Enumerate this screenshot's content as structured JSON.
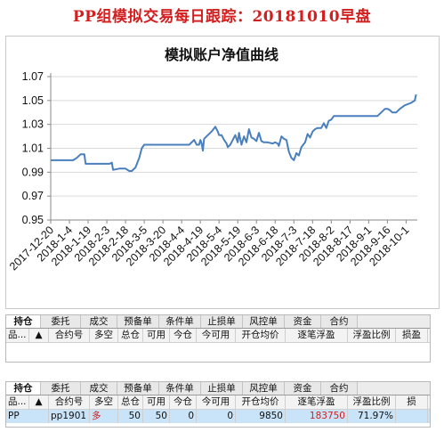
{
  "page_title": "PP组模拟交易每日跟踪：20181010早盘",
  "chart_data": {
    "type": "line",
    "title": "模拟账户净值曲线",
    "xlabel": "",
    "ylabel": "",
    "ylim": [
      0.95,
      1.07
    ],
    "yticks": [
      "0.95",
      "0.97",
      "0.99",
      "1.01",
      "1.03",
      "1.05",
      "1.07"
    ],
    "xticks": [
      "2017-12-20",
      "2018-1-4",
      "2018-1-19",
      "2018-2-3",
      "2018-2-18",
      "2018-3-5",
      "2018-3-20",
      "2018-4-4",
      "2018-4-19",
      "2018-5-4",
      "2018-5-19",
      "2018-6-3",
      "2018-6-18",
      "2018-7-3",
      "2018-7-18",
      "2018-8-2",
      "2018-8-17",
      "2018-9-1",
      "2018-9-16",
      "2018-10-1"
    ],
    "grid": true,
    "line_color": "#4a7fbd",
    "series": [
      {
        "points": [
          [
            "2017-12-20",
            1.0
          ],
          [
            "2017-12-25",
            1.0
          ],
          [
            "2017-12-30",
            1.0
          ],
          [
            "2018-1-4",
            1.0
          ],
          [
            "2018-1-7",
            1.0
          ],
          [
            "2018-1-10",
            1.002
          ],
          [
            "2018-1-13",
            1.005
          ],
          [
            "2018-1-16",
            1.005
          ],
          [
            "2018-1-17",
            0.997
          ],
          [
            "2018-1-19",
            0.997
          ],
          [
            "2018-1-25",
            0.997
          ],
          [
            "2018-2-1",
            0.997
          ],
          [
            "2018-2-3",
            0.997
          ],
          [
            "2018-2-5",
            0.997
          ],
          [
            "2018-2-7",
            0.998
          ],
          [
            "2018-2-8",
            0.992
          ],
          [
            "2018-2-13",
            0.993
          ],
          [
            "2018-2-18",
            0.993
          ],
          [
            "2018-2-21",
            0.991
          ],
          [
            "2018-2-23",
            0.991
          ],
          [
            "2018-2-26",
            0.994
          ],
          [
            "2018-3-1",
            1.002
          ],
          [
            "2018-3-2",
            1.006
          ],
          [
            "2018-3-3",
            1.01
          ],
          [
            "2018-3-5",
            1.013
          ],
          [
            "2018-3-10",
            1.013
          ],
          [
            "2018-3-20",
            1.013
          ],
          [
            "2018-4-4",
            1.013
          ],
          [
            "2018-4-10",
            1.013
          ],
          [
            "2018-4-14",
            1.017
          ],
          [
            "2018-4-16",
            1.013
          ],
          [
            "2018-4-18",
            1.013
          ],
          [
            "2018-4-19",
            1.017
          ],
          [
            "2018-4-20",
            1.014
          ],
          [
            "2018-4-21",
            1.008
          ],
          [
            "2018-4-22",
            1.018
          ],
          [
            "2018-4-25",
            1.021
          ],
          [
            "2018-4-28",
            1.024
          ],
          [
            "2018-5-1",
            1.028
          ],
          [
            "2018-5-3",
            1.024
          ],
          [
            "2018-5-4",
            1.021
          ],
          [
            "2018-5-6",
            1.021
          ],
          [
            "2018-5-8",
            1.017
          ],
          [
            "2018-5-10",
            1.014
          ],
          [
            "2018-5-11",
            1.011
          ],
          [
            "2018-5-13",
            1.013
          ],
          [
            "2018-5-16",
            1.019
          ],
          [
            "2018-5-17",
            1.021
          ],
          [
            "2018-5-19",
            1.015
          ],
          [
            "2018-5-20",
            1.023
          ],
          [
            "2018-5-22",
            1.013
          ],
          [
            "2018-5-24",
            1.02
          ],
          [
            "2018-5-26",
            1.015
          ],
          [
            "2018-5-28",
            1.026
          ],
          [
            "2018-5-30",
            1.019
          ],
          [
            "2018-6-1",
            1.018
          ],
          [
            "2018-6-3",
            1.016
          ],
          [
            "2018-6-5",
            1.023
          ],
          [
            "2018-6-7",
            1.016
          ],
          [
            "2018-6-9",
            1.015
          ],
          [
            "2018-6-12",
            1.015
          ],
          [
            "2018-6-16",
            1.014
          ],
          [
            "2018-6-18",
            1.015
          ],
          [
            "2018-6-20",
            1.014
          ],
          [
            "2018-6-21",
            1.012
          ],
          [
            "2018-6-23",
            1.02
          ],
          [
            "2018-6-25",
            1.018
          ],
          [
            "2018-6-27",
            1.017
          ],
          [
            "2018-6-29",
            1.007
          ],
          [
            "2018-7-1",
            1.002
          ],
          [
            "2018-7-3",
            1.0
          ],
          [
            "2018-7-5",
            1.006
          ],
          [
            "2018-7-7",
            1.004
          ],
          [
            "2018-7-9",
            1.011
          ],
          [
            "2018-7-12",
            1.015
          ],
          [
            "2018-7-14",
            1.022
          ],
          [
            "2018-7-16",
            1.019
          ],
          [
            "2018-7-18",
            1.024
          ],
          [
            "2018-7-20",
            1.026
          ],
          [
            "2018-7-22",
            1.027
          ],
          [
            "2018-7-25",
            1.027
          ],
          [
            "2018-7-27",
            1.031
          ],
          [
            "2018-7-29",
            1.027
          ],
          [
            "2018-7-31",
            1.033
          ],
          [
            "2018-8-2",
            1.034
          ],
          [
            "2018-8-4",
            1.037
          ],
          [
            "2018-8-10",
            1.037
          ],
          [
            "2018-8-17",
            1.037
          ],
          [
            "2018-9-1",
            1.037
          ],
          [
            "2018-9-8",
            1.037
          ],
          [
            "2018-9-11",
            1.04
          ],
          [
            "2018-9-14",
            1.043
          ],
          [
            "2018-9-16",
            1.043
          ],
          [
            "2018-9-18",
            1.042
          ],
          [
            "2018-9-20",
            1.04
          ],
          [
            "2018-9-23",
            1.04
          ],
          [
            "2018-9-26",
            1.043
          ],
          [
            "2018-9-30",
            1.046
          ],
          [
            "2018-10-5",
            1.048
          ],
          [
            "2018-10-8",
            1.05
          ],
          [
            "2018-10-9",
            1.055
          ]
        ]
      }
    ]
  },
  "panel1": {
    "tabs": [
      "持仓",
      "委托",
      "成交",
      "预备单",
      "条件单",
      "止损单",
      "风控单",
      "资金",
      "合约"
    ],
    "headers": [
      "品...",
      "▲",
      "合约号",
      "多空",
      "总仓",
      "可用",
      "今仓",
      "今可用",
      "开仓均价",
      "逐笔浮盈",
      "浮盈比例",
      "损盈"
    ]
  },
  "panel2": {
    "tabs": [
      "持仓",
      "委托",
      "成交",
      "预备单",
      "条件单",
      "止损单",
      "风控单",
      "资金",
      "合约"
    ],
    "headers": [
      "品...",
      "▲",
      "合约号",
      "多空",
      "总仓",
      "可用",
      "今仓",
      "今可用",
      "开仓均价",
      "逐笔浮盈",
      "浮盈比例",
      "损"
    ],
    "row": {
      "product": "PP",
      "contract": "pp1901",
      "direction": "多",
      "total": "50",
      "available": "50",
      "today": "0",
      "today_available": "0",
      "avg_price": "9850",
      "float_pnl": "183750",
      "pnl_ratio": "71.97%"
    }
  }
}
